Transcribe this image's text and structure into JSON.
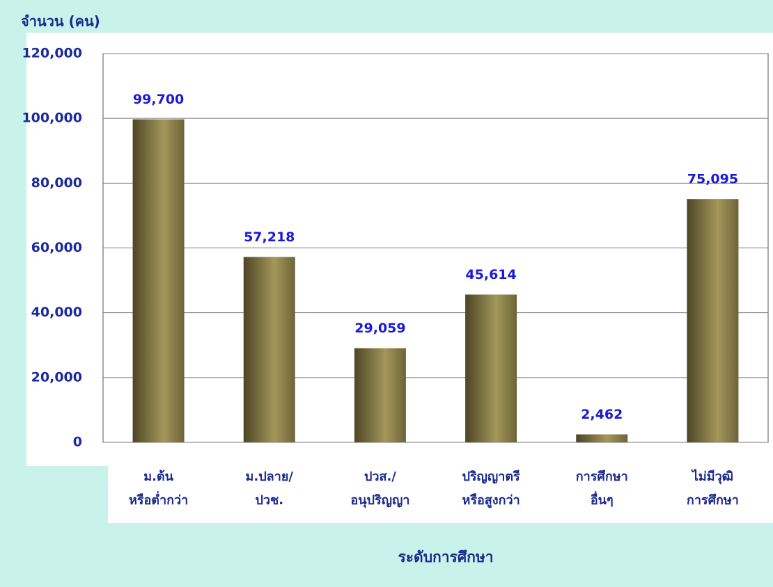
{
  "chart_data": {
    "type": "bar",
    "title": "จำนวน (คน)",
    "x_label": "ระดับการศึกษา",
    "categories": [
      [
        "ม.ต้น",
        "หรือต่ำกว่า"
      ],
      [
        "ม.ปลาย/",
        "ปวช."
      ],
      [
        "ปวส./",
        "อนุปริญญา"
      ],
      [
        "ปริญญาตรี",
        "หรือสูงกว่า"
      ],
      [
        "การศึกษา",
        "อื่นๆ"
      ],
      [
        "ไม่มีวุฒิ",
        "การศึกษา"
      ]
    ],
    "values": [
      99700,
      57218,
      29059,
      45614,
      2462,
      75095
    ],
    "value_labels": [
      "99,700",
      "57,218",
      "29,059",
      "45,614",
      "2,462",
      "75,095"
    ],
    "color": "#a3975a",
    "ylim": [
      0,
      120000
    ],
    "yticks": [
      0,
      {
        "value": 20000,
        "label": "20,000"
      },
      {
        "value": 40000,
        "label": "40,000"
      },
      {
        "value": 60000,
        "label": "60,000"
      },
      {
        "value": 80000,
        "label": "80,000"
      },
      {
        "value": 100000,
        "label": "100,000"
      },
      {
        "value": 120000,
        "label": "120,000"
      }
    ],
    "grid": true
  }
}
